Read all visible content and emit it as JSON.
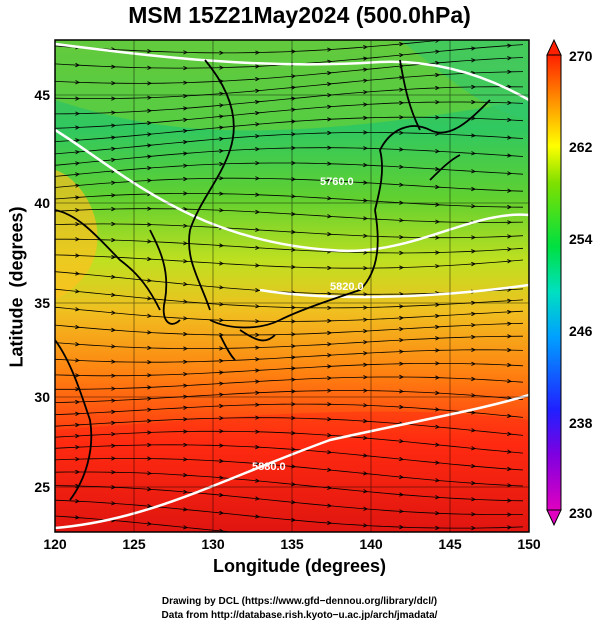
{
  "title": "MSM 15Z21May2024 (500.0hPa)",
  "xaxis": {
    "label": "Longitude (degrees)",
    "ticks": [
      "120",
      "125",
      "130",
      "135",
      "140",
      "145",
      "150"
    ],
    "range": [
      120,
      150
    ]
  },
  "yaxis": {
    "label": "Latitude  (degrees)",
    "ticks": [
      "25",
      "30",
      "35",
      "40",
      "45"
    ],
    "range": [
      22.4,
      47.6
    ]
  },
  "colorbar": {
    "ticks": [
      "230",
      "238",
      "246",
      "254",
      "262",
      "270"
    ],
    "range": [
      230,
      270
    ],
    "colors": [
      "#e000c0",
      "#3030ff",
      "#00c0ff",
      "#00e060",
      "#ffff00",
      "#ff9000",
      "#ff2000"
    ]
  },
  "contours": [
    {
      "label": "5760.0"
    },
    {
      "label": "5820.0"
    },
    {
      "label": "5880.0"
    }
  ],
  "credits": {
    "line1": "Drawing by DCL (https://www.gfd−dennou.org/library/dcl/)",
    "line2": "Data from http://database.rish.kyoto−u.ac.jp/arch/jmadata/"
  }
}
